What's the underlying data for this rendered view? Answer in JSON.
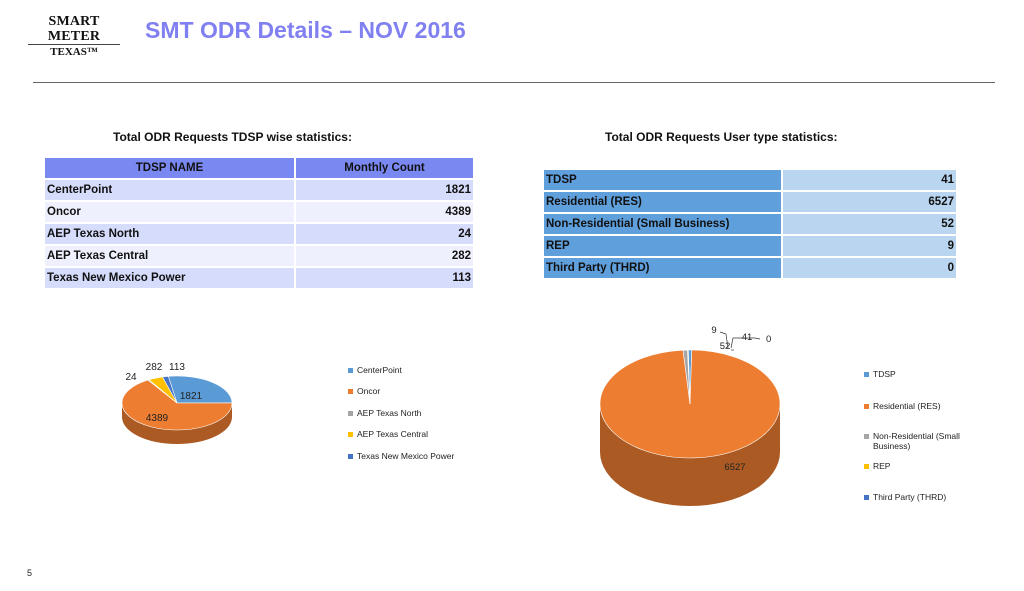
{
  "logo": {
    "line1": "SMART METER",
    "line2": "TEXAS™"
  },
  "title": "SMT ODR Details – NOV 2016",
  "page_number": "5",
  "tdsp_section": {
    "heading": "Total ODR Requests TDSP wise statistics:",
    "col_name": "TDSP NAME",
    "col_count": "Monthly Count",
    "rows": [
      {
        "name": "CenterPoint",
        "count": "1821"
      },
      {
        "name": "Oncor",
        "count": "4389"
      },
      {
        "name": "AEP Texas North",
        "count": "24"
      },
      {
        "name": "AEP Texas Central",
        "count": "282"
      },
      {
        "name": "Texas New Mexico Power",
        "count": "113"
      }
    ]
  },
  "user_section": {
    "heading": "Total ODR Requests User type statistics:",
    "rows": [
      {
        "name": "TDSP",
        "count": "41"
      },
      {
        "name": "Residential (RES)",
        "count": "6527"
      },
      {
        "name": "Non-Residential (Small Business)",
        "count": "52"
      },
      {
        "name": "REP",
        "count": "9"
      },
      {
        "name": "Third Party (THRD)",
        "count": "0"
      }
    ]
  },
  "colors": {
    "blue": "#5b9bd5",
    "orange": "#ed7d31",
    "gray": "#a5a5a5",
    "yellow": "#ffc000",
    "dark_blue": "#4472c4"
  },
  "chart_data": [
    {
      "type": "pie",
      "title": "",
      "categories": [
        "CenterPoint",
        "Oncor",
        "AEP Texas North",
        "AEP Texas Central",
        "Texas New Mexico Power"
      ],
      "values": [
        1821,
        4389,
        24,
        282,
        113
      ],
      "data_labels": [
        "1821",
        "4389",
        "24",
        "282",
        "113"
      ],
      "colors": [
        "#5b9bd5",
        "#ed7d31",
        "#a5a5a5",
        "#ffc000",
        "#4472c4"
      ],
      "legend": "right",
      "style": "3d"
    },
    {
      "type": "pie",
      "title": "",
      "categories": [
        "TDSP",
        "Residential (RES)",
        "Non-Residential (Small Business)",
        "REP",
        "Third Party (THRD)"
      ],
      "values": [
        41,
        6527,
        52,
        9,
        0
      ],
      "data_labels": [
        "41",
        "6527",
        "52",
        "9",
        "0"
      ],
      "colors": [
        "#5b9bd5",
        "#ed7d31",
        "#a5a5a5",
        "#ffc000",
        "#4472c4"
      ],
      "legend": "right",
      "style": "3d"
    }
  ]
}
